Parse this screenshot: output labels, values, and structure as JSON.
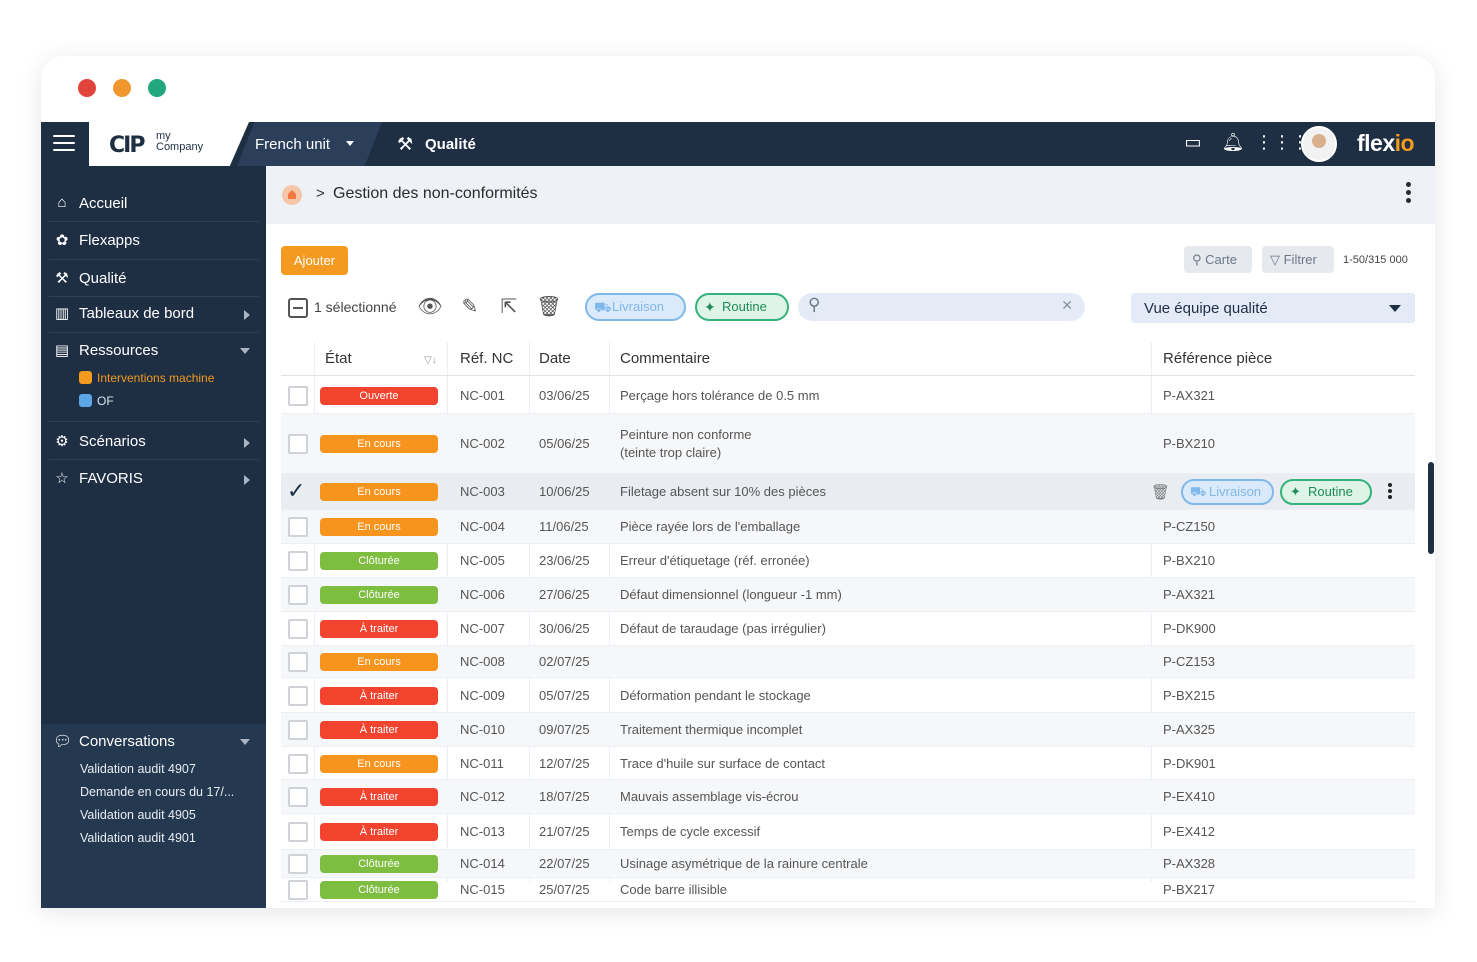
{
  "window": {
    "controls": [
      "close",
      "minimize",
      "maximize"
    ]
  },
  "topbar": {
    "logo_mark": "CIP",
    "logo_text_line1": "my",
    "logo_text_line2": "Company",
    "unit": "French unit",
    "module": "Qualité",
    "icons": [
      "tablet-icon",
      "bell-icon",
      "apps-grid-icon"
    ],
    "brand_main": "flex",
    "brand_accent": "io"
  },
  "sidebar": {
    "items": [
      {
        "label": "Accueil",
        "icon": "home-icon"
      },
      {
        "label": "Flexapps",
        "icon": "flexapps-icon"
      },
      {
        "label": "Qualité",
        "icon": "tools-icon"
      },
      {
        "label": "Tableaux de bord",
        "icon": "chart-icon"
      },
      {
        "label": "Ressources",
        "icon": "table-icon"
      },
      {
        "label": "Scénarios",
        "icon": "scenario-icon"
      },
      {
        "label": "FAVORIS",
        "icon": "star-icon"
      }
    ],
    "sub_items": [
      {
        "label": "Interventions machine",
        "color": "#f39a1e"
      },
      {
        "label": "OF",
        "color": "#5aa6e6"
      }
    ],
    "conversations": {
      "title": "Conversations",
      "items": [
        "Validation audit 4907",
        "Demande en cours du 17/...",
        "Validation audit 4905",
        "Validation audit 4901"
      ]
    }
  },
  "breadcrumb": {
    "separator": ">",
    "title": "Gestion des non-conformités"
  },
  "actions": {
    "add": "Ajouter",
    "map": "Carte",
    "filter": "Filtrer",
    "pagination": "1-50/315 000"
  },
  "toolbar": {
    "selected": "1 sélectionné",
    "chip_delivery": "Livraison",
    "chip_routine": "Routine",
    "search_placeholder": "",
    "view": "Vue équipe qualité"
  },
  "table": {
    "columns": [
      "État",
      "Réf. NC",
      "Date",
      "Commentaire",
      "Référence pièce"
    ],
    "status_colors": {
      "Ouverte": "#f2432f",
      "En cours": "#f7941e",
      "Clôturée": "#7dbd40",
      "À traiter": "#f2432f"
    },
    "rows": [
      {
        "status": "Ouverte",
        "ref": "NC-001",
        "date": "03/06/25",
        "comment": "Perçage hors tolérance de 0.5 mm",
        "comment2": "",
        "part": "P-AX321"
      },
      {
        "status": "En cours",
        "ref": "NC-002",
        "date": "05/06/25",
        "comment": "Peinture non conforme",
        "comment2": "(teinte trop claire)",
        "part": "P-BX210"
      },
      {
        "status": "En cours",
        "ref": "NC-003",
        "date": "10/06/25",
        "comment": "Filetage absent sur 10% des pièces",
        "comment2": "",
        "part": ""
      },
      {
        "status": "En cours",
        "ref": "NC-004",
        "date": "11/06/25",
        "comment": "Pièce rayée lors de l'emballage",
        "comment2": "",
        "part": "P-CZ150"
      },
      {
        "status": "Clôturée",
        "ref": "NC-005",
        "date": "23/06/25",
        "comment": "Erreur d'étiquetage (réf. erronée)",
        "comment2": "",
        "part": "P-BX210"
      },
      {
        "status": "Clôturée",
        "ref": "NC-006",
        "date": "27/06/25",
        "comment": "Défaut dimensionnel (longueur -1 mm)",
        "comment2": "",
        "part": "P-AX321"
      },
      {
        "status": "À traiter",
        "ref": "NC-007",
        "date": "30/06/25",
        "comment": "Défaut de taraudage (pas irrégulier)",
        "comment2": "",
        "part": "P-DK900"
      },
      {
        "status": "En cours",
        "ref": "NC-008",
        "date": "02/07/25",
        "comment": "",
        "comment2": "",
        "part": "P-CZ153"
      },
      {
        "status": "À traiter",
        "ref": "NC-009",
        "date": "05/07/25",
        "comment": "Déformation pendant le stockage",
        "comment2": "",
        "part": "P-BX215"
      },
      {
        "status": "À traiter",
        "ref": "NC-010",
        "date": "09/07/25",
        "comment": "Traitement thermique incomplet",
        "comment2": "",
        "part": "P-AX325"
      },
      {
        "status": "En cours",
        "ref": "NC-011",
        "date": "12/07/25",
        "comment": "Trace d'huile sur surface de contact",
        "comment2": "",
        "part": "P-DK901"
      },
      {
        "status": "À traiter",
        "ref": "NC-012",
        "date": "18/07/25",
        "comment": "Mauvais assemblage vis-écrou",
        "comment2": "",
        "part": "P-EX410"
      },
      {
        "status": "À traiter",
        "ref": "NC-013",
        "date": "21/07/25",
        "comment": "Temps de cycle excessif",
        "comment2": "",
        "part": "P-EX412"
      },
      {
        "status": "Clôturée",
        "ref": "NC-014",
        "date": "22/07/25",
        "comment": "Usinage asymétrique de la rainure centrale",
        "comment2": "",
        "part": "P-AX328"
      },
      {
        "status": "Clôturée",
        "ref": "NC-015",
        "date": "25/07/25",
        "comment": "Code barre illisible",
        "comment2": "",
        "part": "P-BX217"
      }
    ],
    "selected_row_index": 2,
    "selected_row_actions": {
      "chip_delivery": "Livraison",
      "chip_routine": "Routine"
    }
  }
}
